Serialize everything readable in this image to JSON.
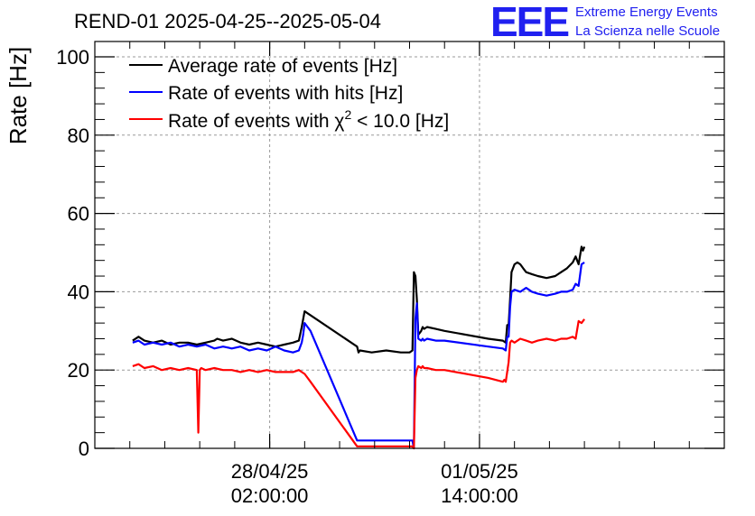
{
  "header": {
    "logo": "EEE",
    "org_line1": "Extreme Energy Events",
    "org_line2": "La Scienza nelle Scuole"
  },
  "chart_data": {
    "type": "line",
    "title": "REND-01 2025-04-25--2025-05-04",
    "ylabel": "Rate [Hz]",
    "xlabel": "",
    "ylim": [
      0,
      100
    ],
    "yticks": [
      0,
      20,
      40,
      60,
      80,
      100
    ],
    "xlim_hours": [
      0,
      216
    ],
    "xticks": [
      {
        "hour": 60,
        "line1": "28/04/25",
        "line2": "02:00:00"
      },
      {
        "hour": 132,
        "line1": "01/05/25",
        "line2": "14:00:00"
      }
    ],
    "grid": true,
    "legend_position": "top-left",
    "series": [
      {
        "name": "Average rate of events [Hz]",
        "legend_main": "Average rate of events [Hz]",
        "color": "#000000",
        "x": [
          13,
          15,
          17,
          20,
          23,
          26,
          29,
          32,
          35,
          38,
          41,
          42,
          44,
          47,
          50,
          53,
          56,
          59,
          62,
          65,
          68,
          70,
          71,
          71.5,
          72,
          73,
          74,
          90,
          90.5,
          91,
          95,
          100,
          105,
          108,
          109,
          109.5,
          110,
          110.5,
          111,
          112,
          112.5,
          113,
          114,
          117,
          120,
          135,
          140,
          141,
          141.5,
          142,
          142.5,
          143,
          144,
          145,
          146,
          147,
          148,
          150,
          152,
          155,
          158,
          160,
          162,
          164,
          165,
          166,
          167,
          167.5,
          168
        ],
        "y": [
          27.5,
          28.5,
          27.5,
          27,
          27.5,
          26.5,
          27,
          27,
          26.5,
          27,
          27.5,
          28,
          27.5,
          28,
          27,
          26.5,
          27,
          26.5,
          26,
          26.5,
          27,
          27.5,
          31,
          33,
          35,
          34.5,
          34,
          26,
          24.5,
          25,
          24.5,
          25,
          24.5,
          24.5,
          25,
          45,
          44,
          38,
          29,
          30,
          31,
          30.5,
          31,
          30.5,
          30,
          28,
          27.5,
          27,
          31.5,
          31.5,
          38,
          45,
          47,
          47.5,
          47,
          46,
          45,
          44.5,
          44,
          43.5,
          44,
          45,
          46,
          47.5,
          49,
          47,
          51.5,
          50.5,
          51.5
        ]
      },
      {
        "name": "Rate of events with hits [Hz]",
        "legend_main": "Rate of events with hits [Hz]",
        "color": "#0000ff",
        "x": [
          13,
          15,
          17,
          20,
          23,
          26,
          29,
          32,
          35,
          38,
          41,
          44,
          47,
          50,
          53,
          56,
          59,
          62,
          65,
          68,
          70,
          71,
          71.5,
          72,
          73,
          74,
          90,
          91,
          95,
          100,
          105,
          108,
          109,
          109.5,
          110,
          110.5,
          111,
          112,
          112.5,
          113,
          114,
          117,
          120,
          135,
          140,
          141,
          141.5,
          142,
          142.5,
          143,
          144,
          146,
          148,
          150,
          152,
          155,
          158,
          160,
          162,
          164,
          165,
          166,
          167,
          168
        ],
        "y": [
          27,
          27.5,
          26.5,
          27,
          26.5,
          27,
          26,
          26.5,
          26,
          26.5,
          25.5,
          26,
          25.5,
          26,
          25,
          25.5,
          25,
          26,
          25,
          24.5,
          25,
          27,
          29,
          32,
          31,
          30,
          2,
          2,
          2,
          2,
          2,
          2,
          2,
          0,
          33,
          37,
          28,
          27.5,
          28,
          27.5,
          28,
          27.5,
          27.5,
          26,
          25.5,
          25,
          28.5,
          28.5,
          36,
          40,
          40.5,
          40,
          41,
          40,
          39.5,
          39,
          39.5,
          40,
          40,
          40.5,
          42,
          41.5,
          47,
          47.5
        ]
      },
      {
        "name": "Rate of events with chi2 < 10.0 [Hz]",
        "legend_main": "Rate of events with χ",
        "legend_sup": "2",
        "legend_tail": " < 10.0 [Hz]",
        "color": "#ff0000",
        "x": [
          13,
          15,
          17,
          20,
          23,
          26,
          29,
          32,
          35,
          35.5,
          36,
          36.5,
          38,
          41,
          44,
          47,
          50,
          53,
          56,
          59,
          62,
          65,
          68,
          70,
          71,
          72,
          73,
          74,
          90,
          95,
          100,
          105,
          108,
          109,
          109.5,
          110,
          110.5,
          111,
          112,
          112.5,
          113,
          114,
          117,
          120,
          135,
          140,
          140.5,
          141,
          141.5,
          142,
          142.5,
          143,
          144,
          146,
          148,
          150,
          152,
          155,
          158,
          160,
          162,
          164,
          165,
          166,
          167,
          168
        ],
        "y": [
          21,
          21.5,
          20.5,
          21,
          20,
          20.5,
          20,
          20.5,
          20,
          4,
          20,
          20.5,
          20,
          20.5,
          20,
          20,
          19.5,
          20,
          19.5,
          20,
          19.5,
          19.5,
          19.5,
          20,
          19.5,
          19,
          18,
          17,
          0.5,
          0.5,
          0.5,
          0.5,
          0.5,
          0.5,
          0,
          18,
          20,
          21,
          20.5,
          21,
          20.5,
          20.5,
          20,
          20,
          18,
          17,
          17.5,
          17,
          19.5,
          22,
          27,
          27.5,
          27,
          28,
          27.5,
          27,
          27.5,
          28,
          27.5,
          28,
          28,
          28.5,
          28,
          32.5,
          32,
          33
        ]
      }
    ]
  }
}
